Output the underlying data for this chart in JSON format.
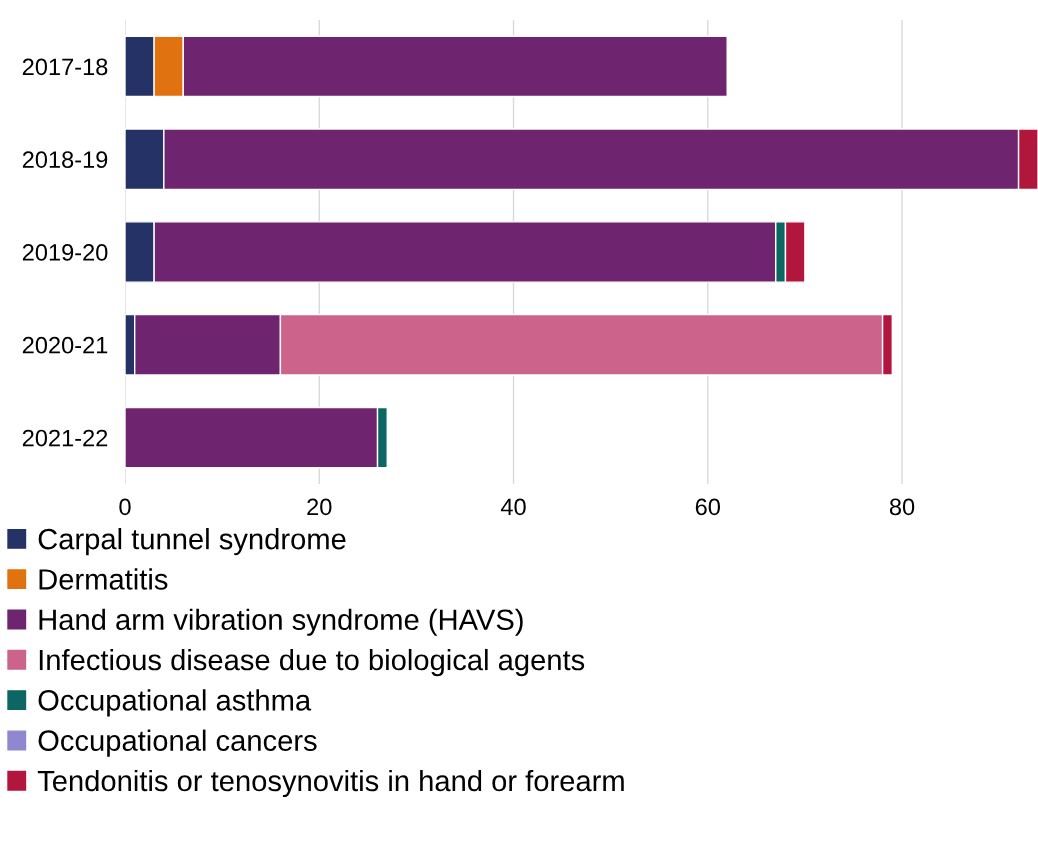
{
  "chart_data": {
    "type": "bar",
    "orientation": "horizontal",
    "stacked": true,
    "categories": [
      "2017-18",
      "2018-19",
      "2019-20",
      "2020-21",
      "2021-22"
    ],
    "series": [
      {
        "name": "Carpal tunnel syndrome",
        "color": "#243266",
        "values": [
          3,
          4,
          3,
          1,
          null
        ]
      },
      {
        "name": "Dermatitis",
        "color": "#e0730f",
        "values": [
          3,
          null,
          null,
          null,
          null
        ]
      },
      {
        "name": "Hand arm vibration syndrome (HAVS)",
        "color": "#6e246e",
        "values": [
          56,
          88,
          64,
          15,
          26
        ]
      },
      {
        "name": "Infectious disease due to biological agents",
        "color": "#cb638b",
        "values": [
          null,
          null,
          null,
          62,
          null
        ]
      },
      {
        "name": "Occupational asthma",
        "color": "#0c6664",
        "values": [
          null,
          null,
          1,
          null,
          1
        ]
      },
      {
        "name": "Occupational cancers",
        "color": "#8f88d1",
        "values": [
          null,
          null,
          null,
          null,
          null
        ]
      },
      {
        "name": "Tendonitis or tenosynovitis in hand or forearm",
        "color": "#b3163d",
        "values": [
          null,
          2,
          2,
          1,
          null
        ]
      }
    ],
    "xlim": [
      0,
      94
    ],
    "xticks": [
      0,
      20,
      40,
      60,
      80
    ],
    "grid": "x",
    "legend": "bottom"
  }
}
